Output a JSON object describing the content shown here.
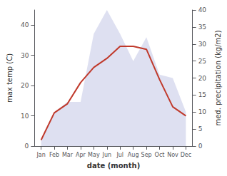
{
  "chart_data": {
    "type": "line",
    "xlabel": "date (month)",
    "ylabel": "max temp (C)",
    "y2label": "med. precipitation (kg/m2)",
    "categories": [
      "Jan",
      "Feb",
      "Mar",
      "Apr",
      "May",
      "Jun",
      "Jul",
      "Aug",
      "Sep",
      "Oct",
      "Nov",
      "Dec"
    ],
    "series": [
      {
        "type": "area",
        "axis": "y2",
        "color": "#c8cce8",
        "values": [
          2,
          10,
          13,
          13,
          33,
          40,
          33,
          25,
          32,
          21,
          20,
          10
        ]
      },
      {
        "type": "line",
        "color": "#c0392b",
        "values": [
          2,
          11,
          14,
          21,
          26,
          29,
          33,
          33,
          32,
          22,
          13,
          10
        ]
      }
    ],
    "ylim": [
      0,
      45
    ],
    "yticks": [
      0,
      10,
      20,
      30,
      40
    ],
    "y2lim": [
      0,
      40
    ],
    "y2ticks": [
      0,
      5,
      10,
      15,
      20,
      25,
      30,
      35,
      40
    ],
    "grid": false
  }
}
